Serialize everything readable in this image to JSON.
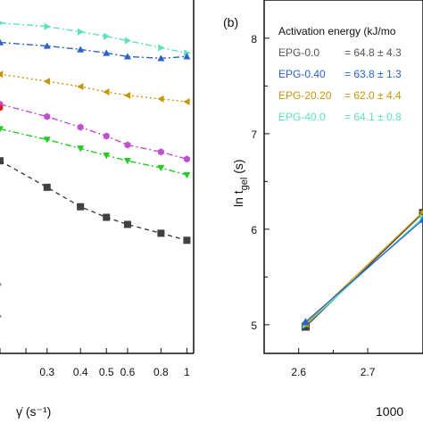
{
  "chart_data": [
    {
      "type": "line",
      "panel_label": "",
      "xscale": "log",
      "xlim": [
        0.2,
        1.06
      ],
      "ylim": [
        0,
        1
      ],
      "xticks": [
        0.3,
        0.4,
        0.5,
        0.6,
        0.8,
        1
      ],
      "xtick_labels": [
        "0.3",
        "0.4",
        "0.5",
        "0.6",
        "0.8",
        "1"
      ],
      "xlabel": "γ̇ (s⁻¹)",
      "series": [
        {
          "color": "#5de0c0",
          "marker": "triangle-right",
          "dash": "dashdot",
          "points": [
            [
              0.2,
              0.935
            ],
            [
              0.3,
              0.925
            ],
            [
              0.4,
              0.91
            ],
            [
              0.5,
              0.897
            ],
            [
              0.6,
              0.885
            ],
            [
              0.8,
              0.865
            ],
            [
              1.0,
              0.85
            ]
          ]
        },
        {
          "color": "#2a62c8",
          "marker": "triangle-up",
          "dash": "dashdot",
          "points": [
            [
              0.2,
              0.88
            ],
            [
              0.3,
              0.87
            ],
            [
              0.4,
              0.86
            ],
            [
              0.5,
              0.85
            ],
            [
              0.6,
              0.84
            ],
            [
              0.8,
              0.835
            ],
            [
              1.0,
              0.84
            ]
          ]
        },
        {
          "color": "#c8960a",
          "marker": "triangle-left",
          "dash": "dotted",
          "points": [
            [
              0.2,
              0.79
            ],
            [
              0.3,
              0.77
            ],
            [
              0.4,
              0.755
            ],
            [
              0.5,
              0.74
            ],
            [
              0.6,
              0.73
            ],
            [
              0.8,
              0.72
            ],
            [
              1.0,
              0.712
            ]
          ]
        },
        {
          "color": "#c24fd0",
          "marker": "hexagon",
          "dash": "dashdot",
          "points": [
            [
              0.2,
              0.705
            ],
            [
              0.3,
              0.67
            ],
            [
              0.4,
              0.64
            ],
            [
              0.5,
              0.615
            ],
            [
              0.6,
              0.59
            ],
            [
              0.8,
              0.57
            ],
            [
              1.0,
              0.55
            ]
          ]
        },
        {
          "color": "#22cc22",
          "marker": "triangle-down",
          "dash": "dashdot",
          "points": [
            [
              0.2,
              0.635
            ],
            [
              0.3,
              0.605
            ],
            [
              0.4,
              0.58
            ],
            [
              0.5,
              0.56
            ],
            [
              0.6,
              0.545
            ],
            [
              0.8,
              0.525
            ],
            [
              1.0,
              0.505
            ]
          ]
        },
        {
          "color": "#404040",
          "marker": "square",
          "dash": "dashed",
          "points": [
            [
              0.2,
              0.545
            ],
            [
              0.3,
              0.47
            ],
            [
              0.4,
              0.415
            ],
            [
              0.5,
              0.385
            ],
            [
              0.6,
              0.365
            ],
            [
              0.8,
              0.34
            ],
            [
              1.0,
              0.32
            ]
          ]
        }
      ],
      "extra_points": [
        {
          "color": "#e02020",
          "marker": "circle",
          "x": 0.2,
          "y": 0.695
        },
        {
          "color": "#909090",
          "marker": "dot",
          "x": 0.2,
          "y": 0.195
        },
        {
          "color": "#909090",
          "marker": "dot",
          "x": 0.2,
          "y": 0.105
        }
      ]
    },
    {
      "type": "line",
      "panel_label": "(b)",
      "xlim": [
        2.55,
        2.78
      ],
      "ylim": [
        4.7,
        8.4
      ],
      "xticks": [
        2.6,
        2.7
      ],
      "xtick_labels": [
        "2.6",
        "2.7"
      ],
      "yticks": [
        5,
        6,
        7,
        8
      ],
      "ytick_labels": [
        "5",
        "6",
        "7",
        "8"
      ],
      "ylabel": "ln t",
      "ylabel_sub": "gel",
      "ylabel_unit": " (s)",
      "xlabel": "1000",
      "legend": {
        "title": "Activation energy (kJ/mo",
        "position": "top",
        "entries": [
          {
            "name": "EPG-0.0",
            "value": "= 64.8 ± 4.3",
            "color": "#555555"
          },
          {
            "name": "EPG-0.40",
            "value": "= 63.8 ± 1.3",
            "color": "#2a62c8"
          },
          {
            "name": "EPG-20.20",
            "value": "= 62.0 ± 4.4",
            "color": "#c8960a"
          },
          {
            "name": "EPG-40.0",
            "value": "= 64.1 ± 0.8",
            "color": "#5de0c0"
          }
        ]
      },
      "series": [
        {
          "name": "EPG-0.0",
          "color": "#404040",
          "marker": "square",
          "points": [
            [
              2.61,
              4.98
            ],
            [
              2.78,
              6.17
            ]
          ]
        },
        {
          "name": "EPG-40.0",
          "color": "#5de0c0",
          "marker": "triangle-right",
          "points": [
            [
              2.61,
              5.0
            ],
            [
              2.78,
              6.12
            ]
          ]
        },
        {
          "name": "EPG-20.20",
          "color": "#c8960a",
          "marker": "triangle-left",
          "points": [
            [
              2.61,
              5.01
            ],
            [
              2.78,
              6.18
            ]
          ]
        },
        {
          "name": "EPG-0.40",
          "color": "#2a62c8",
          "marker": "triangle-up",
          "points": [
            [
              2.61,
              5.03
            ],
            [
              2.78,
              6.1
            ]
          ]
        }
      ]
    }
  ]
}
